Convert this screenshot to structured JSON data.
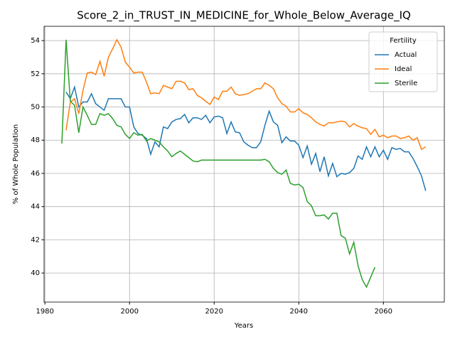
{
  "chart_data": {
    "type": "line",
    "title": "Score_2_in_TRUST_IN_MEDICINE_for_Whole_Below_Average_IQ",
    "x_label": "Years",
    "y_label": "% of Whole Population",
    "legend_title": "Fertility",
    "legend_loc": "upper right",
    "grid": true,
    "xlim": [
      1979.8,
      2074.4
    ],
    "xticks": [
      1980,
      2000,
      2020,
      2040,
      2060
    ],
    "ylim": [
      38.25,
      54.86
    ],
    "yticks": [
      40,
      42,
      44,
      46,
      48,
      50,
      52,
      54
    ],
    "x": [
      1984,
      1985,
      1986,
      1987,
      1988,
      1989,
      1990,
      1991,
      1992,
      1993,
      1994,
      1995,
      1996,
      1997,
      1998,
      1999,
      2000,
      2001,
      2002,
      2003,
      2004,
      2005,
      2006,
      2007,
      2008,
      2009,
      2010,
      2011,
      2012,
      2013,
      2014,
      2015,
      2016,
      2017,
      2018,
      2019,
      2020,
      2021,
      2022,
      2023,
      2024,
      2025,
      2026,
      2027,
      2028,
      2029,
      2030,
      2031,
      2032,
      2033,
      2034,
      2035,
      2036,
      2037,
      2038,
      2039,
      2040,
      2041,
      2042,
      2043,
      2044,
      2045,
      2046,
      2047,
      2048,
      2049,
      2050,
      2051,
      2052,
      2053,
      2054,
      2055,
      2056,
      2057,
      2058,
      2059,
      2060,
      2061,
      2062,
      2063,
      2064,
      2065,
      2066,
      2067,
      2068,
      2069,
      2070
    ],
    "series": [
      {
        "name": "Actual",
        "color": "#1f77b4",
        "values": [
          null,
          50.9,
          50.5,
          51.2,
          50.0,
          50.3,
          50.3,
          50.8,
          50.2,
          50.0,
          49.8,
          50.5,
          50.5,
          50.5,
          50.5,
          50.0,
          50.0,
          48.8,
          48.4,
          48.3,
          48.1,
          47.15,
          47.9,
          47.6,
          48.8,
          48.7,
          49.1,
          49.25,
          49.3,
          49.55,
          49.05,
          49.35,
          49.35,
          49.25,
          49.5,
          49.05,
          49.4,
          49.45,
          49.35,
          48.4,
          49.1,
          48.5,
          48.45,
          47.9,
          47.7,
          47.55,
          47.55,
          47.9,
          48.9,
          49.75,
          49.1,
          48.9,
          47.85,
          48.2,
          47.95,
          47.95,
          47.7,
          46.95,
          47.65,
          46.55,
          47.2,
          46.1,
          47.0,
          45.85,
          46.6,
          45.8,
          46.0,
          45.95,
          46.05,
          46.3,
          47.05,
          46.85,
          47.6,
          47.0,
          47.6,
          47.0,
          47.4,
          46.85,
          47.55,
          47.45,
          47.5,
          47.3,
          47.3,
          46.9,
          46.4,
          45.85,
          44.95
        ]
      },
      {
        "name": "Ideal",
        "color": "#ff7f0e",
        "values": [
          null,
          48.6,
          50.3,
          50.5,
          49.6,
          51.0,
          52.05,
          52.1,
          51.95,
          52.75,
          51.85,
          53.0,
          53.5,
          54.05,
          53.6,
          52.7,
          52.4,
          52.05,
          52.1,
          52.1,
          51.5,
          50.8,
          50.85,
          50.8,
          51.3,
          51.2,
          51.1,
          51.55,
          51.55,
          51.45,
          51.05,
          51.1,
          50.7,
          50.55,
          50.35,
          50.15,
          50.6,
          50.45,
          50.95,
          50.95,
          51.2,
          50.8,
          50.7,
          50.75,
          50.8,
          50.95,
          51.1,
          51.1,
          51.45,
          51.3,
          51.1,
          50.55,
          50.2,
          50.05,
          49.7,
          49.7,
          49.9,
          49.65,
          49.55,
          49.35,
          49.1,
          48.95,
          48.85,
          49.05,
          49.05,
          49.1,
          49.15,
          49.1,
          48.8,
          49.0,
          48.85,
          48.75,
          48.7,
          48.35,
          48.65,
          48.2,
          48.3,
          48.15,
          48.25,
          48.25,
          48.1,
          48.15,
          48.25,
          48.0,
          48.15,
          47.45,
          47.6
        ]
      },
      {
        "name": "Sterile",
        "color": "#2ca02c",
        "values": [
          47.8,
          54.05,
          50.35,
          50.1,
          48.45,
          50.0,
          49.5,
          48.95,
          48.95,
          49.6,
          49.5,
          49.6,
          49.3,
          48.9,
          48.8,
          48.35,
          48.1,
          48.45,
          48.3,
          48.35,
          47.95,
          48.1,
          48.0,
          47.9,
          47.6,
          47.35,
          47.0,
          47.2,
          47.35,
          47.15,
          46.95,
          46.75,
          46.7,
          46.8,
          46.8,
          46.8,
          46.8,
          46.8,
          46.8,
          46.8,
          46.8,
          46.8,
          46.8,
          46.8,
          46.8,
          46.8,
          46.8,
          46.8,
          46.85,
          46.7,
          46.3,
          46.05,
          45.95,
          46.2,
          45.4,
          45.3,
          45.35,
          45.15,
          44.3,
          44.05,
          43.45,
          43.45,
          43.5,
          43.25,
          43.6,
          43.6,
          42.25,
          42.1,
          41.15,
          41.85,
          40.45,
          39.6,
          39.15,
          39.75,
          40.35,
          null,
          null,
          null,
          null,
          null,
          null,
          null,
          null,
          null,
          null,
          null,
          null
        ]
      }
    ]
  }
}
